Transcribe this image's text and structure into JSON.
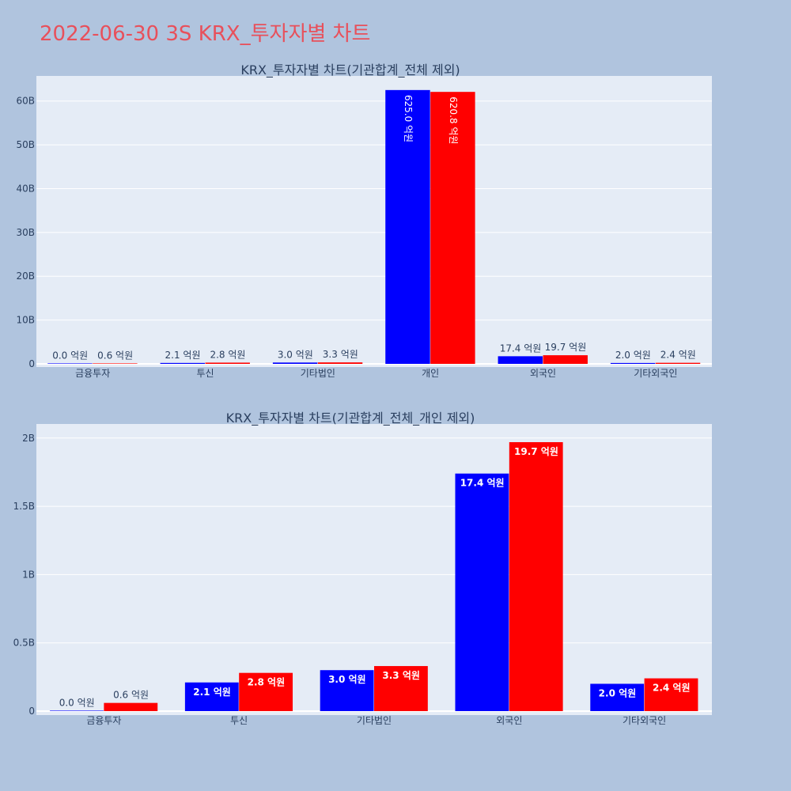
{
  "page_title": "2022-06-30 3S KRX_투자자별 차트",
  "colors": {
    "background": "#b0c4de",
    "plot_bg": "#e5ecf6",
    "title": "#e8505b",
    "series_a": "#0000ff",
    "series_b": "#ff0000",
    "gridline": "#ffffff",
    "text": "#2a3f5f"
  },
  "chart_data": [
    {
      "type": "bar",
      "title": "KRX_투자자별 차트(기관합계_전체 제외)",
      "categories": [
        "금융투자",
        "투신",
        "기타법인",
        "개인",
        "외국인",
        "기타외국인"
      ],
      "series": [
        {
          "values": [
            0.0,
            210000000,
            300000000,
            62500000000,
            1740000000,
            200000000
          ],
          "labels": [
            "0.0 억원",
            "2.1 억원",
            "3.0 억원",
            "625.0 억원",
            "17.4 억원",
            "2.0 억원"
          ]
        },
        {
          "values": [
            60000000,
            280000000,
            330000000,
            62080000000,
            1970000000,
            240000000
          ],
          "labels": [
            "0.6 억원",
            "2.8 억원",
            "3.3 억원",
            "620.8 억원",
            "19.7 억원",
            "2.4 억원"
          ]
        }
      ],
      "y_ticks": [
        "0",
        "10B",
        "20B",
        "30B",
        "40B",
        "50B",
        "60B"
      ],
      "ylim": [
        0,
        65000000000
      ],
      "grid": true
    },
    {
      "type": "bar",
      "title": "KRX_투자자별 차트(기관합계_전체_개인 제외)",
      "categories": [
        "금융투자",
        "투신",
        "기타법인",
        "외국인",
        "기타외국인"
      ],
      "series": [
        {
          "values": [
            0.0,
            210000000,
            300000000,
            1740000000,
            200000000
          ],
          "labels": [
            "0.0 억원",
            "2.1 억원",
            "3.0 억원",
            "17.4 억원",
            "2.0 억원"
          ]
        },
        {
          "values": [
            60000000,
            280000000,
            330000000,
            1970000000,
            240000000
          ],
          "labels": [
            "0.6 억원",
            "2.8 억원",
            "3.3 억원",
            "19.7 억원",
            "2.4 억원"
          ]
        }
      ],
      "y_ticks": [
        "0",
        "0.5B",
        "1B",
        "1.5B",
        "2B"
      ],
      "ylim": [
        0,
        2080000000
      ],
      "grid": true
    }
  ]
}
